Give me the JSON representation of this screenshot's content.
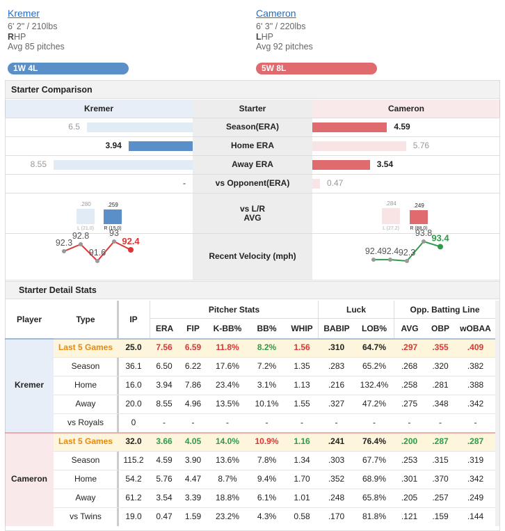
{
  "players": [
    {
      "name": "Kremer",
      "size": "6' 2\" / 210lbs",
      "hand": "R",
      "hand_rest": "HP",
      "pitches": "Avg 85 pitches",
      "record": "1W 4L",
      "color": "#5b8fc7"
    },
    {
      "name": "Cameron",
      "size": "6' 3\" / 220lbs",
      "hand": "L",
      "hand_rest": "HP",
      "pitches": "Avg 92 pitches",
      "record": "5W 8L",
      "color": "#e06b6f"
    }
  ],
  "comparison": {
    "title": "Starter Comparison",
    "header": "Starter",
    "rows": [
      {
        "label": "Season(ERA)",
        "values": [
          6.5,
          4.59
        ]
      },
      {
        "label": "Home ERA",
        "values": [
          3.94,
          5.76
        ]
      },
      {
        "label": "Away ERA",
        "values": [
          8.55,
          3.54
        ]
      },
      {
        "label": "vs Opponent(ERA)",
        "values": [
          null,
          0.47
        ],
        "value_labels": [
          "-",
          "0.47"
        ]
      }
    ],
    "splits": {
      "label": [
        "vs L/R",
        "AVG"
      ],
      "values": [
        [
          0.28,
          0.259
        ],
        [
          0.284,
          0.249
        ]
      ],
      "value_labels": [
        [
          ".280",
          ".259"
        ],
        [
          ".284",
          ".249"
        ]
      ],
      "hands": [
        [
          "L (21.0)",
          "R (15.0)"
        ],
        [
          "L (27.2)",
          "R (88.0)"
        ]
      ]
    },
    "velocity": {
      "label": "Recent Velocity (mph)",
      "values": [
        [
          92.3,
          92.8,
          91.6,
          93,
          92.4
        ],
        [
          92.4,
          92.4,
          92.3,
          93.8,
          93.4
        ]
      ],
      "colors": [
        "#d93636",
        "#2e9a4a"
      ]
    }
  },
  "detail": {
    "title": "Starter Detail Stats",
    "head": [
      "Player",
      "Type",
      "IP"
    ],
    "groups": [
      {
        "label": "Pitcher Stats",
        "columns": [
          "ERA",
          "FIP",
          "K-BB%",
          "BB%",
          "WHIP"
        ]
      },
      {
        "label": "Luck",
        "columns": [
          "BABIP",
          "LOB%"
        ]
      },
      {
        "label": "Opp. Batting Line",
        "columns": [
          "AVG",
          "OBP",
          "wOBAA"
        ]
      }
    ],
    "players": [
      {
        "rows": [
          {
            "type": "Last 5 Games",
            "cells": [
              "25.0",
              "7.56",
              "6.59",
              "11.8%",
              "8.2%",
              "1.56",
              ".310",
              "64.7%",
              ".297",
              ".355",
              ".409"
            ],
            "colors": [
              null,
              "#d93636",
              "#d93636",
              "#d93636",
              "#2e9a4a",
              "#d93636",
              null,
              null,
              "#d93636",
              "#d93636",
              "#d93636"
            ]
          },
          {
            "type": "Season",
            "cells": [
              "36.1",
              "6.50",
              "6.22",
              "17.6%",
              "7.2%",
              "1.35",
              ".283",
              "65.2%",
              ".268",
              ".320",
              ".382"
            ]
          },
          {
            "type": "Home",
            "cells": [
              "16.0",
              "3.94",
              "7.86",
              "23.4%",
              "3.1%",
              "1.13",
              ".216",
              "132.4%",
              ".258",
              ".281",
              ".388"
            ]
          },
          {
            "type": "Away",
            "cells": [
              "20.0",
              "8.55",
              "4.96",
              "13.5%",
              "10.1%",
              "1.55",
              ".327",
              "47.2%",
              ".275",
              ".348",
              ".342"
            ]
          },
          {
            "type": "vs Royals",
            "cells": [
              "0",
              "-",
              "-",
              "-",
              "-",
              "-",
              "-",
              "-",
              "-",
              "-",
              "-"
            ]
          }
        ]
      },
      {
        "rows": [
          {
            "type": "Last 5 Games",
            "cells": [
              "32.0",
              "3.66",
              "4.05",
              "14.0%",
              "10.9%",
              "1.16",
              ".241",
              "76.4%",
              ".200",
              ".287",
              ".287"
            ],
            "colors": [
              null,
              "#2e9a4a",
              "#2e9a4a",
              "#2e9a4a",
              "#d93636",
              "#2e9a4a",
              null,
              null,
              "#2e9a4a",
              "#2e9a4a",
              "#2e9a4a"
            ]
          },
          {
            "type": "Season",
            "cells": [
              "115.2",
              "4.59",
              "3.90",
              "13.6%",
              "7.8%",
              "1.34",
              ".303",
              "67.7%",
              ".253",
              ".315",
              ".319"
            ]
          },
          {
            "type": "Home",
            "cells": [
              "54.2",
              "5.76",
              "4.47",
              "8.7%",
              "9.4%",
              "1.70",
              ".352",
              "68.9%",
              ".301",
              ".370",
              ".342"
            ]
          },
          {
            "type": "Away",
            "cells": [
              "61.2",
              "3.54",
              "3.39",
              "18.8%",
              "6.1%",
              "1.01",
              ".248",
              "65.8%",
              ".205",
              ".257",
              ".249"
            ]
          },
          {
            "type": "vs Twins",
            "cells": [
              "19.0",
              "0.47",
              "1.59",
              "23.2%",
              "4.3%",
              "0.58",
              ".170",
              "81.8%",
              ".121",
              ".159",
              ".144"
            ]
          }
        ]
      }
    ]
  }
}
